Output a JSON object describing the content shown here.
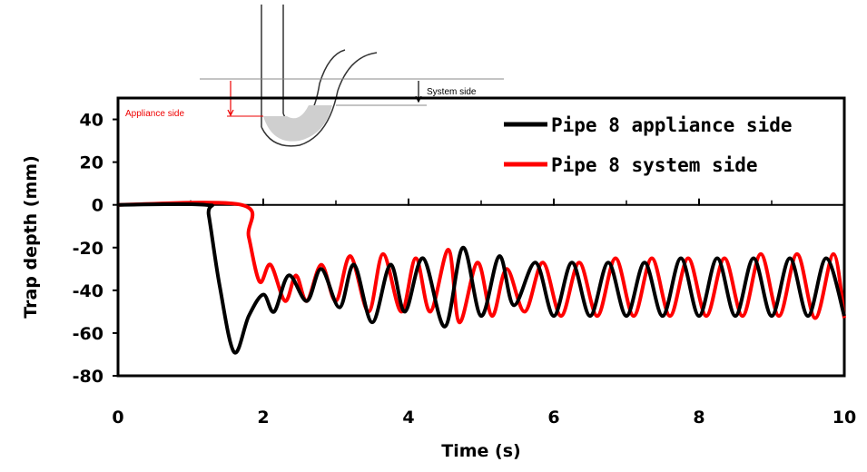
{
  "chart_data": {
    "type": "line",
    "xlabel": "Time (s)",
    "ylabel": "Trap depth (mm)",
    "xlim": [
      0,
      10
    ],
    "ylim": [
      -80,
      50
    ],
    "xticks": [
      0,
      2,
      4,
      6,
      8,
      10
    ],
    "yticks": [
      40,
      20,
      0,
      -20,
      -40,
      -60,
      -80
    ],
    "legend_position": "top-right",
    "grid": false,
    "inset_labels": {
      "appliance": "Appliance side",
      "system": "System side"
    },
    "series": [
      {
        "name": "Pipe 8 appliance side",
        "color": "#000000",
        "x": [
          0,
          1.2,
          1.25,
          1.4,
          1.6,
          1.8,
          2.0,
          2.15,
          2.35,
          2.6,
          2.8,
          3.05,
          3.25,
          3.5,
          3.75,
          3.95,
          4.2,
          4.5,
          4.75,
          5.0,
          5.25,
          5.45,
          5.75,
          6.0,
          6.25,
          6.5,
          6.75,
          7.0,
          7.25,
          7.5,
          7.75,
          8.0,
          8.25,
          8.5,
          8.75,
          9.0,
          9.25,
          9.5,
          9.75,
          10.0
        ],
        "values": [
          0,
          0,
          -5,
          -38,
          -69,
          -52,
          -42,
          -50,
          -33,
          -45,
          -30,
          -48,
          -28,
          -55,
          -28,
          -50,
          -25,
          -57,
          -20,
          -52,
          -24,
          -47,
          -27,
          -52,
          -27,
          -52,
          -27,
          -52,
          -27,
          -52,
          -25,
          -52,
          -25,
          -52,
          -25,
          -52,
          -25,
          -52,
          -25,
          -52
        ]
      },
      {
        "name": "Pipe 8 system side",
        "color": "#ff0000",
        "x": [
          0,
          1.7,
          1.8,
          1.95,
          2.1,
          2.3,
          2.45,
          2.6,
          2.8,
          3.0,
          3.2,
          3.45,
          3.65,
          3.9,
          4.1,
          4.3,
          4.55,
          4.7,
          4.95,
          5.15,
          5.35,
          5.6,
          5.85,
          6.1,
          6.35,
          6.6,
          6.85,
          7.1,
          7.35,
          7.6,
          7.85,
          8.1,
          8.35,
          8.6,
          8.85,
          9.1,
          9.35,
          9.6,
          9.85,
          10.0
        ],
        "values": [
          0,
          0,
          -15,
          -36,
          -28,
          -45,
          -33,
          -45,
          -28,
          -45,
          -24,
          -50,
          -23,
          -50,
          -25,
          -50,
          -21,
          -55,
          -27,
          -52,
          -30,
          -50,
          -27,
          -52,
          -27,
          -52,
          -25,
          -52,
          -25,
          -52,
          -25,
          -52,
          -25,
          -52,
          -23,
          -52,
          -23,
          -53,
          -23,
          -53
        ]
      }
    ]
  }
}
